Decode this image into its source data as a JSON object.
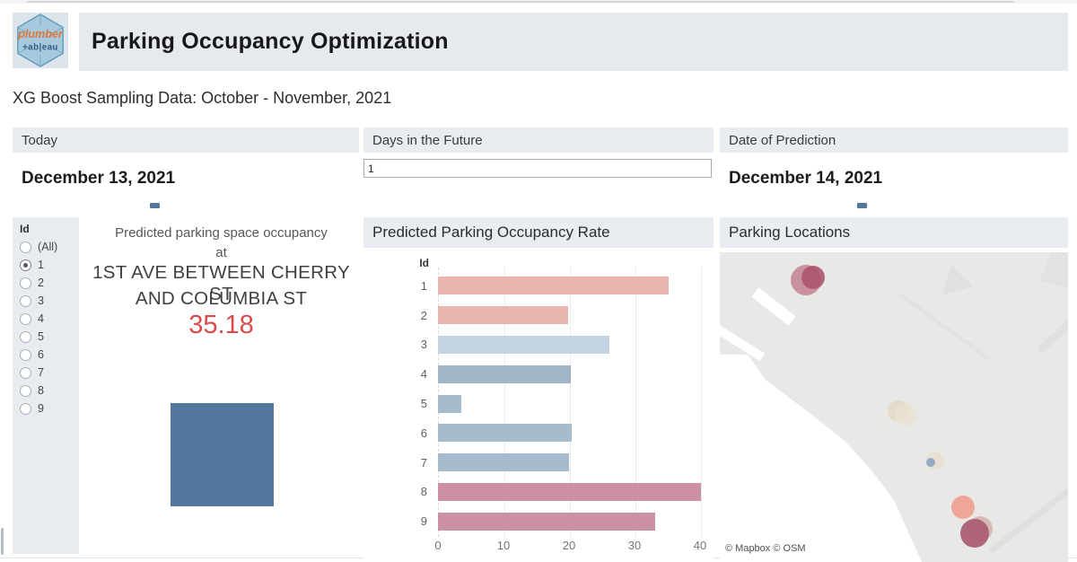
{
  "header": {
    "logo_line1": "plumber",
    "logo_line2": "+ab|eau",
    "title": "Parking Occupancy Optimization",
    "subtitle": "XG Boost Sampling Data: October - November, 2021"
  },
  "controls": {
    "today": {
      "label": "Today",
      "date": "December 13, 2021"
    },
    "days_in_future": {
      "label": "Days in the Future",
      "value": "1"
    },
    "date_of_prediction": {
      "label": "Date of Prediction",
      "date": "December 14, 2021"
    },
    "mark_color": "#54779e"
  },
  "id_filter": {
    "title": "Id",
    "options": [
      {
        "label": "(All)",
        "selected": false
      },
      {
        "label": "1",
        "selected": true
      },
      {
        "label": "2",
        "selected": false
      },
      {
        "label": "3",
        "selected": false
      },
      {
        "label": "4",
        "selected": false
      },
      {
        "label": "5",
        "selected": false
      },
      {
        "label": "6",
        "selected": false
      },
      {
        "label": "7",
        "selected": false
      },
      {
        "label": "8",
        "selected": false
      },
      {
        "label": "9",
        "selected": false
      }
    ]
  },
  "highlight": {
    "heading_line1": "Predicted parking space occupancy",
    "heading_line2": "at",
    "location_line1": "1ST AVE BETWEEN CHERRY ST",
    "location_line2": "AND COLUMBIA ST",
    "value": "35.18",
    "value_color": "#dc4b4b",
    "square_color": "#54779e"
  },
  "chart_data": {
    "type": "bar",
    "orientation": "horizontal",
    "title": "Predicted Parking Occupancy Rate",
    "category_axis_label": "Id",
    "categories": [
      "1",
      "2",
      "3",
      "4",
      "5",
      "6",
      "7",
      "8",
      "9"
    ],
    "values": [
      35.18,
      19.8,
      26.2,
      20.3,
      3.6,
      20.4,
      20.0,
      40.1,
      33.2
    ],
    "bar_colors": [
      "#eab5ac",
      "#eab5ac",
      "#c4d3e1",
      "#a2b4c7",
      "#a7bbce",
      "#a7bbce",
      "#a7bbce",
      "#cc91a2",
      "#cc91a2"
    ],
    "x_ticks": [
      0,
      10,
      20,
      30,
      40
    ],
    "xlim": [
      0,
      41
    ],
    "grid": true,
    "legend": "none"
  },
  "map": {
    "title": "Parking Locations",
    "attribution": "© Mapbox  © OSM",
    "markers": [
      {
        "name": "rose-halo-top",
        "x": 96,
        "y": 31,
        "r": 17,
        "color": "#c07b8b",
        "opacity": 0.8
      },
      {
        "name": "rose-top",
        "x": 104,
        "y": 28,
        "r": 13,
        "color": "#ac5570",
        "opacity": 0.9
      },
      {
        "name": "beige-a",
        "x": 199,
        "y": 177,
        "r": 12,
        "color": "#e3d7c2",
        "opacity": 0.8
      },
      {
        "name": "beige-b",
        "x": 207,
        "y": 181,
        "r": 12,
        "color": "#eae1d1",
        "opacity": 0.8
      },
      {
        "name": "beige-small",
        "x": 240,
        "y": 232,
        "r": 10,
        "color": "#e8decd",
        "opacity": 0.8
      },
      {
        "name": "blue-small",
        "x": 235,
        "y": 234,
        "r": 5,
        "color": "#8ba3c1",
        "opacity": 0.9
      },
      {
        "name": "salmon",
        "x": 271,
        "y": 284,
        "r": 13,
        "color": "#efa192",
        "opacity": 0.95
      },
      {
        "name": "rose-halo-bottom",
        "x": 290,
        "y": 308,
        "r": 14,
        "color": "#cfa3a0",
        "opacity": 0.7
      },
      {
        "name": "rose-bottom",
        "x": 284,
        "y": 313,
        "r": 16,
        "color": "#aa5b73",
        "opacity": 0.92
      }
    ]
  }
}
